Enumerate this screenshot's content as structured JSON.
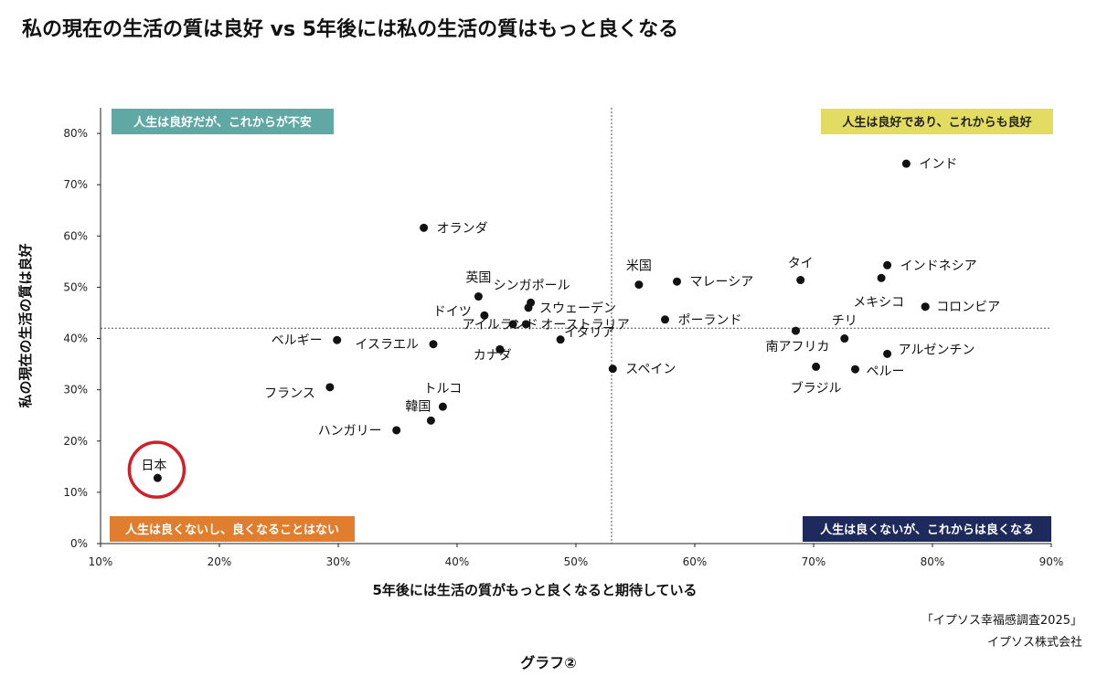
{
  "title": "私の現在の生活の質は良好 vs 5年後には私の生活の質はもっと良くなる",
  "source": [
    "「イプソス幸福感調査2025」",
    "イプソス株式会社"
  ],
  "figure_label": "グラフ②",
  "chart_data": {
    "type": "scatter",
    "xlabel": "5年後には生活の質がもっと良くなると期待している",
    "ylabel": "私の現在の生活の質は良好",
    "xlim": [
      10,
      90
    ],
    "ylim": [
      0,
      85
    ],
    "x_ticks": [
      10,
      20,
      30,
      40,
      50,
      60,
      70,
      80,
      90
    ],
    "y_ticks": [
      0,
      10,
      20,
      30,
      40,
      50,
      60,
      70,
      80
    ],
    "tick_suffix": "%",
    "grid": false,
    "reference_lines": {
      "x": 53,
      "y": 42
    },
    "quadrant_labels": [
      {
        "text": "人生は良好だが、これからが不安",
        "position": "top-left",
        "color": "#5fa8a3"
      },
      {
        "text": "人生は良好であり、これからも良好",
        "position": "top-right",
        "color": "#e3dc63"
      },
      {
        "text": "人生は良くないし、良くなることはない",
        "position": "bottom-left",
        "color": "#e07e2e"
      },
      {
        "text": "人生は良くないが、これからは良くなる",
        "position": "bottom-right",
        "color": "#1f2a5c"
      }
    ],
    "highlight": {
      "label": "日本",
      "color": "#d0202a"
    },
    "points": [
      {
        "label": "インド",
        "x": 77.8,
        "y": 74.1
      },
      {
        "label": "オランダ",
        "x": 37.2,
        "y": 61.6
      },
      {
        "label": "インドネシア",
        "x": 76.2,
        "y": 54.3
      },
      {
        "label": "タイ",
        "x": 68.9,
        "y": 51.4
      },
      {
        "label": "",
        "x": 75.7,
        "y": 51.8
      },
      {
        "label": "米国",
        "x": 55.3,
        "y": 50.5
      },
      {
        "label": "マレーシア",
        "x": 58.5,
        "y": 51.1
      },
      {
        "label": "英国",
        "x": 41.8,
        "y": 48.2
      },
      {
        "label": "シンガポール",
        "x": 46.2,
        "y": 47.0
      },
      {
        "label": "スウェーデン",
        "x": 46.0,
        "y": 46.0
      },
      {
        "label": "ドイツ",
        "x": 42.3,
        "y": 44.5
      },
      {
        "label": "メキシコ",
        "x": 79.4,
        "y": 46.2
      },
      {
        "label": "コロンビア",
        "x": 79.4,
        "y": 46.2
      },
      {
        "label": "アイルランド",
        "x": 44.7,
        "y": 42.8
      },
      {
        "label": "オーストラリア",
        "x": 45.8,
        "y": 42.8
      },
      {
        "label": "ポーランド",
        "x": 57.5,
        "y": 43.7
      },
      {
        "label": "チリ",
        "x": 72.6,
        "y": 40.0
      },
      {
        "label": "南アフリカ",
        "x": 68.5,
        "y": 41.5
      },
      {
        "label": "ベルギー",
        "x": 29.9,
        "y": 39.7
      },
      {
        "label": "イスラエル",
        "x": 38.0,
        "y": 38.9
      },
      {
        "label": "カナダ",
        "x": 43.6,
        "y": 37.9
      },
      {
        "label": "イタリア",
        "x": 48.7,
        "y": 39.8
      },
      {
        "label": "アルゼンチン",
        "x": 76.2,
        "y": 37.0
      },
      {
        "label": "スペイン",
        "x": 53.1,
        "y": 34.1
      },
      {
        "label": "ブラジル",
        "x": 70.2,
        "y": 34.5
      },
      {
        "label": "ペルー",
        "x": 73.5,
        "y": 34.0
      },
      {
        "label": "フランス",
        "x": 29.3,
        "y": 30.5
      },
      {
        "label": "トルコ",
        "x": 38.8,
        "y": 26.7
      },
      {
        "label": "韓国",
        "x": 37.8,
        "y": 24.0
      },
      {
        "label": "ハンガリー",
        "x": 34.9,
        "y": 22.1
      },
      {
        "label": "日本",
        "x": 14.8,
        "y": 12.8
      }
    ]
  }
}
